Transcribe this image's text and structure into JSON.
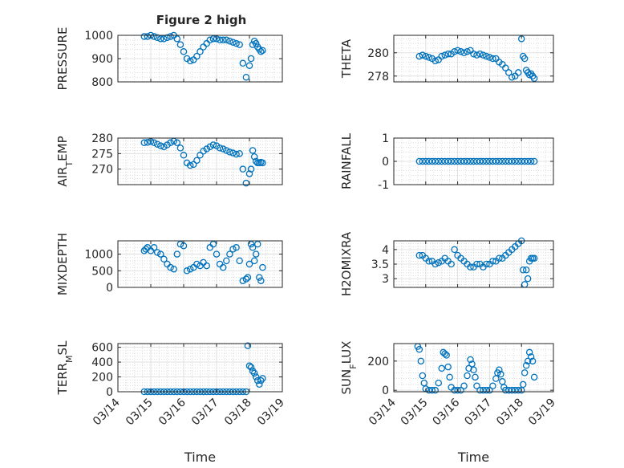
{
  "figure": {
    "title": "Figure 2 high",
    "xlabel": "Time",
    "date_ticks": [
      "03/14",
      "03/15",
      "03/16",
      "03/17",
      "03/18",
      "03/19"
    ],
    "marker_color": "#0072BD"
  },
  "chart_data": [
    {
      "type": "scatter",
      "marker": "open-circle",
      "ylabel": "PRESSURE",
      "xlim": [
        "03/14",
        "03/19"
      ],
      "ylim": [
        800,
        1000
      ],
      "yticks": [
        "800",
        "900",
        "1000"
      ],
      "grid": true,
      "x": [
        14.8,
        14.9,
        15.0,
        15.1,
        15.2,
        15.3,
        15.4,
        15.5,
        15.6,
        15.7,
        15.8,
        15.9,
        16.0,
        16.1,
        16.2,
        16.3,
        16.4,
        16.5,
        16.6,
        16.7,
        16.8,
        16.9,
        17.0,
        17.1,
        17.2,
        17.3,
        17.4,
        17.5,
        17.6,
        17.7,
        17.8,
        17.9,
        18.0,
        18.05,
        18.1,
        18.15,
        18.2,
        18.25,
        18.3,
        18.35,
        18.4
      ],
      "y": [
        995,
        995,
        1000,
        995,
        990,
        985,
        985,
        990,
        995,
        1000,
        985,
        960,
        930,
        900,
        890,
        895,
        910,
        930,
        950,
        965,
        980,
        985,
        985,
        980,
        980,
        980,
        975,
        970,
        965,
        960,
        880,
        820,
        870,
        900,
        960,
        975,
        965,
        950,
        940,
        930,
        935
      ]
    },
    {
      "type": "scatter",
      "marker": "open-circle",
      "ylabel": "THETA",
      "xlim": [
        "03/14",
        "03/19"
      ],
      "ylim": [
        277.5,
        281.5
      ],
      "yticks": [
        "278",
        "280"
      ],
      "grid": true,
      "x": [
        14.8,
        14.9,
        15.0,
        15.1,
        15.2,
        15.3,
        15.4,
        15.5,
        15.6,
        15.7,
        15.8,
        15.9,
        16.0,
        16.1,
        16.2,
        16.3,
        16.4,
        16.5,
        16.6,
        16.7,
        16.8,
        16.9,
        17.0,
        17.1,
        17.2,
        17.3,
        17.4,
        17.5,
        17.6,
        17.7,
        17.8,
        17.9,
        18.0,
        18.05,
        18.1,
        18.15,
        18.2,
        18.25,
        18.3,
        18.35,
        18.4
      ],
      "y": [
        279.7,
        279.8,
        279.7,
        279.6,
        279.5,
        279.3,
        279.4,
        279.7,
        279.8,
        279.9,
        279.9,
        280.1,
        280.2,
        280.1,
        280.0,
        280.1,
        280.2,
        279.9,
        279.8,
        279.9,
        279.8,
        279.7,
        279.6,
        279.5,
        279.5,
        279.2,
        279.0,
        278.7,
        278.3,
        277.9,
        278.0,
        278.3,
        281.2,
        279.7,
        279.5,
        278.5,
        278.3,
        278.1,
        278.2,
        278.0,
        277.8
      ]
    },
    {
      "type": "scatter",
      "marker": "open-circle",
      "ylabel": "AIR_TEMP",
      "xlim": [
        "03/14",
        "03/19"
      ],
      "ylim": [
        265,
        280
      ],
      "yticks": [
        "270",
        "275",
        "280"
      ],
      "grid": true,
      "x": [
        14.8,
        14.9,
        15.0,
        15.1,
        15.2,
        15.3,
        15.4,
        15.5,
        15.6,
        15.7,
        15.8,
        15.9,
        16.0,
        16.1,
        16.2,
        16.3,
        16.4,
        16.5,
        16.6,
        16.7,
        16.8,
        16.9,
        17.0,
        17.1,
        17.2,
        17.3,
        17.4,
        17.5,
        17.6,
        17.7,
        17.8,
        17.9,
        18.0,
        18.05,
        18.1,
        18.15,
        18.2,
        18.25,
        18.3,
        18.35,
        18.4
      ],
      "y": [
        278.5,
        278.6,
        278.9,
        278.5,
        278.0,
        277.5,
        277.2,
        277.8,
        278.5,
        279.0,
        278.5,
        276.8,
        274.5,
        272.0,
        271.2,
        271.5,
        272.8,
        274.5,
        275.8,
        276.5,
        277.2,
        277.8,
        277.5,
        276.8,
        276.5,
        276.0,
        275.5,
        275.2,
        274.8,
        275.0,
        270.0,
        265.5,
        268.5,
        270.0,
        276.0,
        274.0,
        272.5,
        272.0,
        272.0,
        272.2,
        272.0
      ]
    },
    {
      "type": "scatter",
      "marker": "open-circle",
      "ylabel": "RAINFALL",
      "xlim": [
        "03/14",
        "03/19"
      ],
      "ylim": [
        -1,
        1
      ],
      "yticks": [
        "-1",
        "0",
        "1"
      ],
      "grid": true,
      "x": [
        14.8,
        14.9,
        15.0,
        15.1,
        15.2,
        15.3,
        15.4,
        15.5,
        15.6,
        15.7,
        15.8,
        15.9,
        16.0,
        16.1,
        16.2,
        16.3,
        16.4,
        16.5,
        16.6,
        16.7,
        16.8,
        16.9,
        17.0,
        17.1,
        17.2,
        17.3,
        17.4,
        17.5,
        17.6,
        17.7,
        17.8,
        17.9,
        18.0,
        18.1,
        18.2,
        18.3,
        18.4
      ],
      "y": [
        0,
        0,
        0,
        0,
        0,
        0,
        0,
        0,
        0,
        0,
        0,
        0,
        0,
        0,
        0,
        0,
        0,
        0,
        0,
        0,
        0,
        0,
        0,
        0,
        0,
        0,
        0,
        0,
        0,
        0,
        0,
        0,
        0,
        0,
        0,
        0,
        0
      ]
    },
    {
      "type": "scatter",
      "marker": "open-circle",
      "ylabel": "MIXDEPTH",
      "xlim": [
        "03/14",
        "03/19"
      ],
      "ylim": [
        0,
        1400
      ],
      "yticks": [
        "0",
        "500",
        "1000"
      ],
      "grid": true,
      "x": [
        14.8,
        14.85,
        14.9,
        15.0,
        15.1,
        15.2,
        15.3,
        15.4,
        15.5,
        15.6,
        15.7,
        15.8,
        15.9,
        16.0,
        16.1,
        16.2,
        16.3,
        16.4,
        16.5,
        16.6,
        16.7,
        16.8,
        16.9,
        17.0,
        17.1,
        17.2,
        17.3,
        17.4,
        17.5,
        17.6,
        17.7,
        17.8,
        17.9,
        17.95,
        18.0,
        18.05,
        18.1,
        18.15,
        18.2,
        18.25,
        18.3,
        18.35,
        18.4
      ],
      "y": [
        1100,
        1150,
        1200,
        1100,
        1200,
        1050,
        1000,
        850,
        700,
        600,
        550,
        1000,
        1300,
        1250,
        500,
        550,
        600,
        700,
        650,
        750,
        650,
        1200,
        1300,
        1000,
        700,
        600,
        800,
        1000,
        1150,
        1200,
        800,
        200,
        250,
        300,
        700,
        1300,
        1200,
        800,
        1000,
        1300,
        300,
        200,
        600
      ]
    },
    {
      "type": "scatter",
      "marker": "open-circle",
      "ylabel": "H2OMIXRA",
      "xlim": [
        "03/14",
        "03/19"
      ],
      "ylim": [
        2.7,
        4.3
      ],
      "yticks": [
        "3",
        "3.5",
        "4"
      ],
      "grid": true,
      "x": [
        14.8,
        14.9,
        15.0,
        15.1,
        15.2,
        15.3,
        15.4,
        15.5,
        15.6,
        15.7,
        15.8,
        15.9,
        16.0,
        16.1,
        16.2,
        16.3,
        16.4,
        16.5,
        16.6,
        16.7,
        16.8,
        16.9,
        17.0,
        17.1,
        17.2,
        17.3,
        17.4,
        17.5,
        17.6,
        17.7,
        17.8,
        17.9,
        18.0,
        18.05,
        18.1,
        18.15,
        18.2,
        18.25,
        18.3,
        18.35,
        18.4
      ],
      "y": [
        3.8,
        3.8,
        3.7,
        3.6,
        3.6,
        3.5,
        3.55,
        3.6,
        3.7,
        3.6,
        3.5,
        4.0,
        3.8,
        3.7,
        3.6,
        3.5,
        3.4,
        3.4,
        3.5,
        3.5,
        3.4,
        3.5,
        3.5,
        3.6,
        3.6,
        3.7,
        3.7,
        3.8,
        3.9,
        4.0,
        4.1,
        4.2,
        4.3,
        3.3,
        2.8,
        3.3,
        3.0,
        3.6,
        3.7,
        3.7,
        3.7
      ]
    },
    {
      "type": "scatter",
      "marker": "open-circle",
      "ylabel": "TERR_MSL",
      "xlim": [
        "03/14",
        "03/19"
      ],
      "ylim": [
        0,
        650
      ],
      "yticks": [
        "0",
        "200",
        "400",
        "600"
      ],
      "grid": true,
      "x": [
        14.8,
        14.9,
        15.0,
        15.1,
        15.2,
        15.3,
        15.4,
        15.5,
        15.6,
        15.7,
        15.8,
        15.9,
        16.0,
        16.1,
        16.2,
        16.3,
        16.4,
        16.5,
        16.6,
        16.7,
        16.8,
        16.9,
        17.0,
        17.1,
        17.2,
        17.3,
        17.4,
        17.5,
        17.6,
        17.7,
        17.8,
        17.9,
        17.95,
        18.0,
        18.05,
        18.1,
        18.15,
        18.2,
        18.25,
        18.3,
        18.35,
        18.4
      ],
      "y": [
        0,
        0,
        0,
        0,
        0,
        0,
        0,
        0,
        0,
        0,
        0,
        0,
        0,
        0,
        0,
        0,
        0,
        0,
        0,
        0,
        0,
        0,
        0,
        0,
        0,
        0,
        0,
        0,
        0,
        0,
        0,
        0,
        620,
        350,
        330,
        280,
        250,
        200,
        150,
        100,
        150,
        180
      ]
    },
    {
      "type": "scatter",
      "marker": "open-circle",
      "ylabel": "SUN_FLUX",
      "xlim": [
        "03/14",
        "03/19"
      ],
      "ylim": [
        -10,
        320
      ],
      "yticks": [
        "0",
        "200"
      ],
      "grid": true,
      "x": [
        14.75,
        14.8,
        14.85,
        14.9,
        14.95,
        15.0,
        15.1,
        15.2,
        15.3,
        15.4,
        15.5,
        15.55,
        15.6,
        15.65,
        15.7,
        15.75,
        15.8,
        15.9,
        16.0,
        16.1,
        16.2,
        16.3,
        16.35,
        16.4,
        16.45,
        16.5,
        16.55,
        16.6,
        16.7,
        16.8,
        16.9,
        17.0,
        17.1,
        17.2,
        17.25,
        17.3,
        17.35,
        17.4,
        17.45,
        17.5,
        17.6,
        17.7,
        17.8,
        17.9,
        18.0,
        18.05,
        18.1,
        18.15,
        18.2,
        18.25,
        18.3,
        18.35,
        18.4
      ],
      "y": [
        300,
        280,
        200,
        100,
        50,
        10,
        0,
        0,
        0,
        50,
        150,
        260,
        250,
        240,
        160,
        90,
        20,
        0,
        0,
        0,
        30,
        100,
        150,
        210,
        180,
        140,
        90,
        30,
        0,
        0,
        0,
        0,
        30,
        80,
        120,
        140,
        110,
        60,
        20,
        0,
        0,
        0,
        0,
        0,
        0,
        40,
        120,
        170,
        200,
        260,
        230,
        200,
        90
      ]
    }
  ]
}
